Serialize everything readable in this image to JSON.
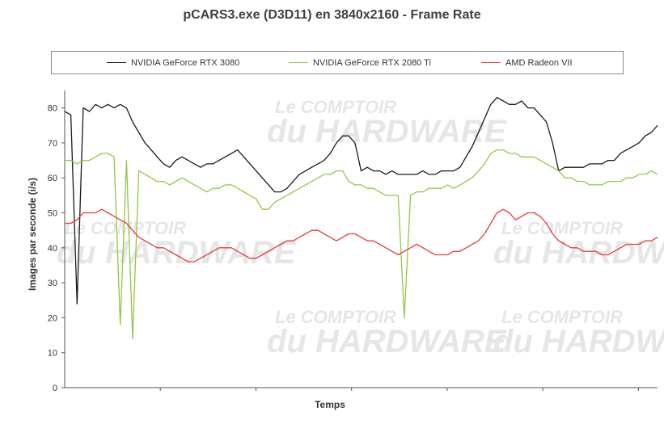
{
  "chart_data": {
    "type": "line",
    "title": "pCARS3.exe (D3D11) en 3840x2160 - Frame Rate",
    "xlabel": "Temps",
    "ylabel": "Images par seconde (i/s)",
    "ylim": [
      0,
      85
    ],
    "yticks": [
      0,
      10,
      20,
      30,
      40,
      50,
      60,
      70,
      80
    ],
    "grid": false,
    "legend_position": "top",
    "watermark": {
      "line1": "Le COMPTOIR",
      "line2": "du HARDWARE"
    },
    "series": [
      {
        "name": "NVIDIA GeForce RTX 3080",
        "color": "#1a1a1a",
        "values": [
          79,
          78,
          24,
          80,
          79,
          81,
          80,
          81,
          80,
          81,
          80,
          76,
          73,
          70,
          68,
          66,
          64,
          63,
          65,
          66,
          65,
          64,
          63,
          64,
          64,
          65,
          66,
          67,
          68,
          66,
          64,
          62,
          60,
          58,
          56,
          56,
          57,
          59,
          61,
          62,
          63,
          64,
          65,
          67,
          70,
          72,
          72,
          70,
          62,
          63,
          62,
          62,
          61,
          62,
          61,
          61,
          61,
          61,
          62,
          61,
          61,
          62,
          62,
          62,
          63,
          66,
          69,
          73,
          77,
          81,
          83,
          82,
          81,
          81,
          82,
          80,
          80,
          78,
          76,
          70,
          62,
          63,
          63,
          63,
          63,
          64,
          64,
          64,
          65,
          65,
          67,
          68,
          69,
          70,
          72,
          73,
          75
        ]
      },
      {
        "name": "NVIDIA GeForce RTX 2080 Ti",
        "color": "#92c846",
        "values": [
          65,
          65,
          64,
          65,
          65,
          66,
          67,
          67,
          66,
          18,
          65,
          14,
          62,
          61,
          60,
          59,
          59,
          58,
          59,
          60,
          59,
          58,
          57,
          56,
          57,
          57,
          58,
          58,
          57,
          56,
          55,
          54,
          51,
          51,
          53,
          54,
          55,
          56,
          57,
          58,
          59,
          60,
          61,
          61,
          62,
          62,
          59,
          58,
          58,
          57,
          57,
          56,
          55,
          55,
          55,
          20,
          55,
          56,
          56,
          57,
          57,
          57,
          58,
          57,
          58,
          59,
          60,
          62,
          64,
          67,
          68,
          68,
          67,
          67,
          66,
          66,
          66,
          65,
          64,
          63,
          62,
          60,
          60,
          59,
          59,
          58,
          58,
          58,
          59,
          59,
          59,
          60,
          60,
          61,
          61,
          62,
          61
        ]
      },
      {
        "name": "AMD Radeon VII",
        "color": "#e83c3c",
        "values": [
          47,
          47,
          48,
          50,
          50,
          50,
          51,
          50,
          49,
          48,
          47,
          45,
          43,
          42,
          41,
          40,
          40,
          39,
          38,
          37,
          36,
          36,
          37,
          38,
          39,
          40,
          40,
          40,
          39,
          38,
          37,
          37,
          38,
          39,
          40,
          41,
          42,
          42,
          43,
          44,
          45,
          45,
          44,
          43,
          42,
          43,
          44,
          44,
          43,
          42,
          42,
          41,
          40,
          39,
          38,
          39,
          40,
          41,
          40,
          39,
          38,
          38,
          38,
          39,
          39,
          40,
          41,
          42,
          44,
          47,
          50,
          51,
          50,
          48,
          49,
          50,
          50,
          49,
          47,
          44,
          42,
          41,
          40,
          40,
          39,
          39,
          39,
          38,
          38,
          39,
          40,
          41,
          41,
          41,
          42,
          42,
          43
        ]
      }
    ]
  }
}
